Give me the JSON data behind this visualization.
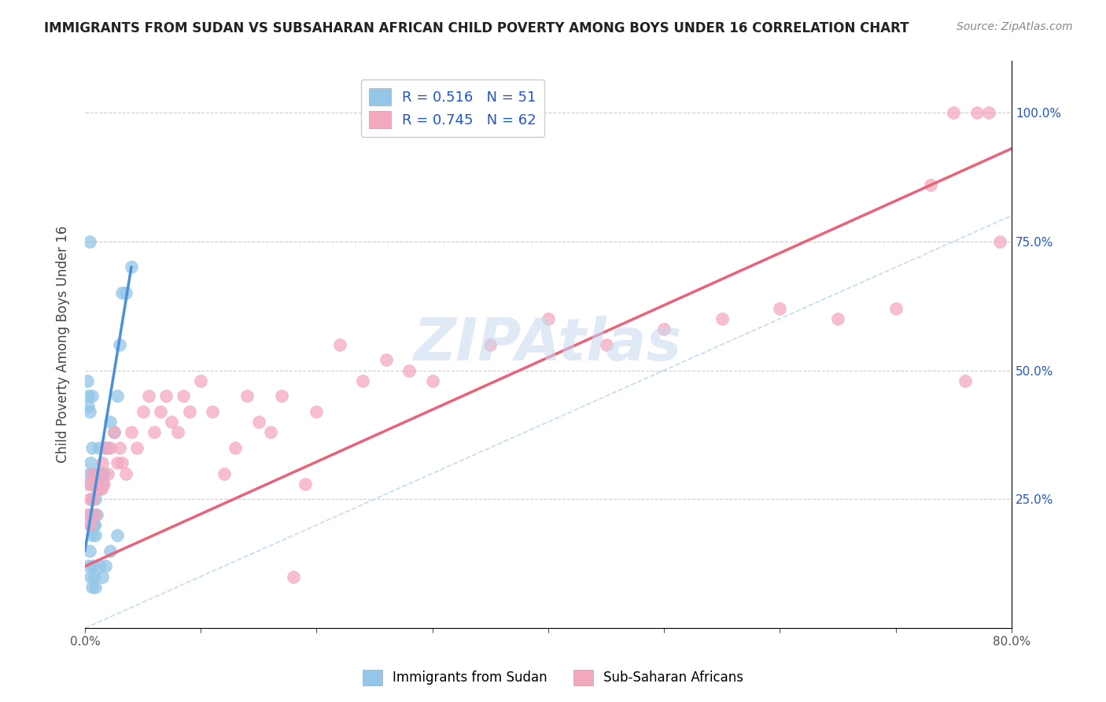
{
  "title": "IMMIGRANTS FROM SUDAN VS SUBSAHARAN AFRICAN CHILD POVERTY AMONG BOYS UNDER 16 CORRELATION CHART",
  "source": "Source: ZipAtlas.com",
  "ylabel": "Child Poverty Among Boys Under 16",
  "xlim": [
    0.0,
    0.8
  ],
  "ylim": [
    0.0,
    1.1
  ],
  "color_blue": "#93C6E8",
  "color_pink": "#F4A8BE",
  "color_blue_line": "#4A90D9",
  "color_pink_line": "#E8627A",
  "color_blue_dark": "#2255CC",
  "color_pink_dark": "#CC4488",
  "legend_R1": "0.516",
  "legend_N1": "51",
  "legend_R2": "0.745",
  "legend_N2": "62",
  "legend_label1": "Immigrants from Sudan",
  "legend_label2": "Sub-Saharan Africans",
  "watermark": "ZIPAtlas",
  "sudan_x": [
    0.002,
    0.003,
    0.003,
    0.004,
    0.004,
    0.004,
    0.005,
    0.005,
    0.005,
    0.006,
    0.006,
    0.006,
    0.007,
    0.007,
    0.008,
    0.008,
    0.009,
    0.009,
    0.01,
    0.01,
    0.011,
    0.012,
    0.013,
    0.014,
    0.015,
    0.016,
    0.018,
    0.02,
    0.022,
    0.025,
    0.028,
    0.03,
    0.032,
    0.035,
    0.04,
    0.003,
    0.004,
    0.005,
    0.006,
    0.007,
    0.008,
    0.009,
    0.012,
    0.015,
    0.018,
    0.022,
    0.028,
    0.004,
    0.006,
    0.008,
    0.01
  ],
  "sudan_y": [
    0.48,
    0.43,
    0.45,
    0.42,
    0.3,
    0.22,
    0.28,
    0.32,
    0.2,
    0.35,
    0.25,
    0.18,
    0.3,
    0.22,
    0.28,
    0.2,
    0.25,
    0.18,
    0.3,
    0.22,
    0.28,
    0.35,
    0.27,
    0.3,
    0.28,
    0.3,
    0.35,
    0.35,
    0.4,
    0.38,
    0.45,
    0.55,
    0.65,
    0.65,
    0.7,
    0.12,
    0.15,
    0.1,
    0.08,
    0.12,
    0.1,
    0.08,
    0.12,
    0.1,
    0.12,
    0.15,
    0.18,
    0.75,
    0.45,
    0.2,
    0.3
  ],
  "subsaharan_x": [
    0.002,
    0.003,
    0.004,
    0.005,
    0.006,
    0.007,
    0.008,
    0.009,
    0.01,
    0.012,
    0.014,
    0.015,
    0.016,
    0.018,
    0.02,
    0.022,
    0.025,
    0.028,
    0.03,
    0.032,
    0.035,
    0.04,
    0.045,
    0.05,
    0.055,
    0.06,
    0.065,
    0.07,
    0.075,
    0.08,
    0.085,
    0.09,
    0.1,
    0.11,
    0.12,
    0.13,
    0.14,
    0.15,
    0.16,
    0.17,
    0.18,
    0.19,
    0.2,
    0.22,
    0.24,
    0.26,
    0.28,
    0.3,
    0.35,
    0.4,
    0.45,
    0.5,
    0.55,
    0.6,
    0.65,
    0.7,
    0.73,
    0.75,
    0.77,
    0.79,
    0.76,
    0.78
  ],
  "subsaharan_y": [
    0.22,
    0.28,
    0.25,
    0.2,
    0.3,
    0.25,
    0.28,
    0.22,
    0.27,
    0.3,
    0.27,
    0.32,
    0.28,
    0.35,
    0.3,
    0.35,
    0.38,
    0.32,
    0.35,
    0.32,
    0.3,
    0.38,
    0.35,
    0.42,
    0.45,
    0.38,
    0.42,
    0.45,
    0.4,
    0.38,
    0.45,
    0.42,
    0.48,
    0.42,
    0.3,
    0.35,
    0.45,
    0.4,
    0.38,
    0.45,
    0.1,
    0.28,
    0.42,
    0.55,
    0.48,
    0.52,
    0.5,
    0.48,
    0.55,
    0.6,
    0.55,
    0.58,
    0.6,
    0.62,
    0.6,
    0.62,
    0.86,
    1.0,
    1.0,
    0.75,
    0.48,
    1.0
  ],
  "blue_line_x": [
    0.0,
    0.04
  ],
  "blue_line_y": [
    0.15,
    0.7
  ],
  "pink_line_x": [
    0.0,
    0.8
  ],
  "pink_line_y": [
    0.12,
    0.93
  ],
  "ref_line_x": [
    0.0,
    0.8
  ],
  "ref_line_y": [
    0.0,
    0.8
  ]
}
